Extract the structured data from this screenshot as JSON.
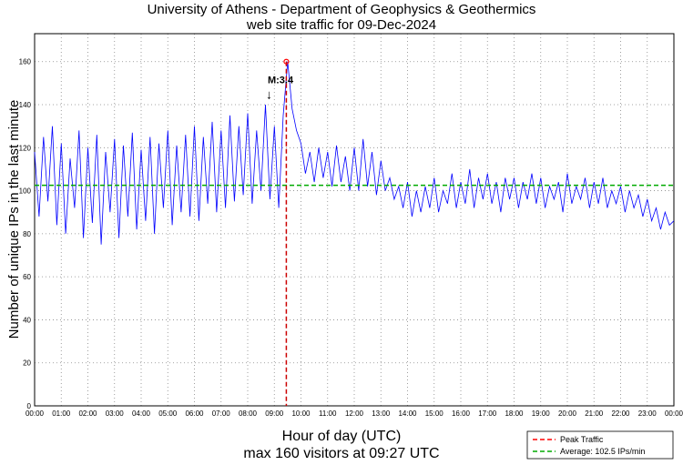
{
  "chart_data": {
    "type": "line",
    "title": [
      "University of Athens - Department of Geophysics & Geothermics",
      "web site traffic for 09-Dec-2024"
    ],
    "xlabel": "Hour of day (UTC)",
    "subtitle": "max 160 visitors at 09:27 UTC",
    "ylabel": "Number of unique IPs in the last minute",
    "ylim": [
      0,
      173
    ],
    "xlim_minutes": [
      0,
      1440
    ],
    "grid": true,
    "yticks": [
      0,
      20,
      40,
      60,
      80,
      100,
      120,
      140,
      160
    ],
    "xtick_labels": [
      "00:00",
      "01:00",
      "02:00",
      "03:00",
      "04:00",
      "05:00",
      "06:00",
      "07:00",
      "08:00",
      "09:00",
      "10:00",
      "11:00",
      "12:00",
      "13:00",
      "14:00",
      "15:00",
      "16:00",
      "17:00",
      "18:00",
      "19:00",
      "20:00",
      "21:00",
      "22:00",
      "23:00",
      "00:00"
    ],
    "series": [
      {
        "name": "traffic",
        "color": "#0000ff",
        "x_step_minutes": 10,
        "values": [
          118,
          88,
          125,
          95,
          130,
          84,
          122,
          80,
          115,
          92,
          128,
          78,
          120,
          85,
          126,
          75,
          118,
          90,
          124,
          78,
          121,
          88,
          127,
          82,
          119,
          86,
          125,
          80,
          122,
          92,
          128,
          84,
          121,
          90,
          126,
          88,
          130,
          86,
          125,
          94,
          132,
          90,
          128,
          92,
          135,
          95,
          130,
          98,
          136,
          94,
          128,
          100,
          140,
          96,
          130,
          92,
          135,
          160,
          138,
          128,
          122,
          108,
          118,
          104,
          120,
          106,
          118,
          102,
          121,
          104,
          116,
          100,
          120,
          100,
          124,
          102,
          118,
          98,
          114,
          100,
          106,
          96,
          102,
          92,
          104,
          88,
          100,
          90,
          102,
          92,
          106,
          90,
          100,
          94,
          108,
          92,
          104,
          94,
          110,
          92,
          106,
          96,
          108,
          94,
          104,
          90,
          106,
          96,
          106,
          92,
          104,
          96,
          108,
          94,
          106,
          92,
          102,
          96,
          104,
          90,
          108,
          94,
          102,
          96,
          106,
          92,
          104,
          94,
          106,
          92,
          100,
          94,
          102,
          90,
          100,
          92,
          98,
          88,
          96,
          86,
          92,
          82,
          90,
          84,
          86
        ]
      }
    ],
    "peak": {
      "time": "09:27",
      "minute": 567,
      "value": 160,
      "color": "#ff0000"
    },
    "average": {
      "value": 102.5,
      "color": "#00aa00"
    },
    "annotation": {
      "text": "M:3.4",
      "minute": 525,
      "value": 150
    },
    "legend": {
      "placement": "bottom-right",
      "entries": [
        "Peak Traffic",
        "Average: 102.5 IPs/min"
      ]
    }
  }
}
